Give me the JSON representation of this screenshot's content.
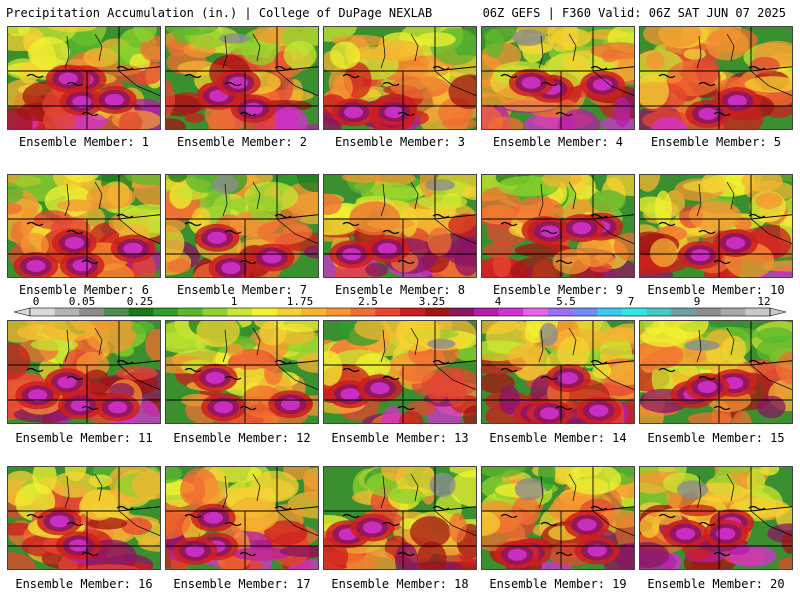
{
  "header": {
    "left": "Precipitation Accumulation (in.) | College of DuPage NEXLAB",
    "right": "06Z GEFS | F360 Valid: 06Z SAT JUN 07 2025"
  },
  "colorbar": {
    "ticks": [
      "0",
      "0.05",
      "0.25",
      "1",
      "1.75",
      "2.5",
      "3.25",
      "4",
      "5.5",
      "7",
      "9",
      "12"
    ],
    "colors": [
      "#d9d9d9",
      "#b3b3b3",
      "#8c8c8c",
      "#4d8c4d",
      "#1a7a1a",
      "#2e9e2e",
      "#5cb82e",
      "#8fd12e",
      "#c8e632",
      "#f2f232",
      "#f5d232",
      "#f5b432",
      "#f59632",
      "#f26e32",
      "#e64632",
      "#cc1e1e",
      "#a31414",
      "#8c1464",
      "#b41eaa",
      "#d232d2",
      "#e664e6",
      "#9e6ef2",
      "#6e8cf2",
      "#3cc8f0",
      "#32e6e6",
      "#46c8c8",
      "#6ea0a0",
      "#8c8c8c",
      "#a8a8a8",
      "#c8c8c8"
    ]
  },
  "members": [
    {
      "label": "Ensemble Member: 1"
    },
    {
      "label": "Ensemble Member: 2"
    },
    {
      "label": "Ensemble Member: 3"
    },
    {
      "label": "Ensemble Member: 4"
    },
    {
      "label": "Ensemble Member: 5"
    },
    {
      "label": "Ensemble Member: 6"
    },
    {
      "label": "Ensemble Member: 7"
    },
    {
      "label": "Ensemble Member: 8"
    },
    {
      "label": "Ensemble Member: 9"
    },
    {
      "label": "Ensemble Member: 10"
    },
    {
      "label": "Ensemble Member: 11"
    },
    {
      "label": "Ensemble Member: 12"
    },
    {
      "label": "Ensemble Member: 13"
    },
    {
      "label": "Ensemble Member: 14"
    },
    {
      "label": "Ensemble Member: 15"
    },
    {
      "label": "Ensemble Member: 16"
    },
    {
      "label": "Ensemble Member: 17"
    },
    {
      "label": "Ensemble Member: 18"
    },
    {
      "label": "Ensemble Member: 19"
    },
    {
      "label": "Ensemble Member: 20"
    }
  ]
}
